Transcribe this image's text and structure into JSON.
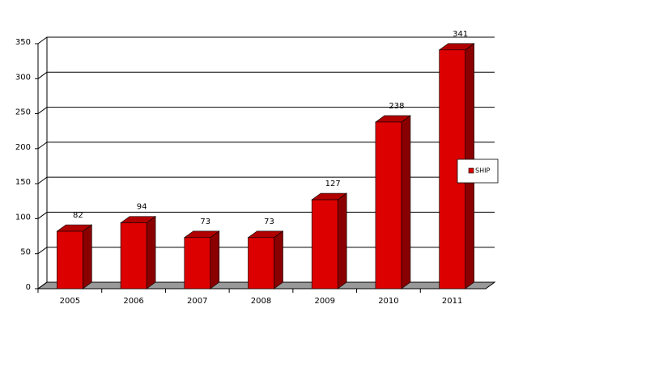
{
  "chart_data": {
    "type": "bar3d",
    "categories": [
      "2005",
      "2006",
      "2007",
      "2008",
      "2009",
      "2010",
      "2011"
    ],
    "series": [
      {
        "name": "SHIP",
        "color": "#dd0000",
        "values": [
          82,
          94,
          73,
          73,
          127,
          238,
          341
        ]
      }
    ],
    "ylim": [
      0,
      350
    ],
    "yticks": [
      0,
      50,
      100,
      150,
      200,
      250,
      300,
      350
    ],
    "grid": true,
    "legend": "right"
  }
}
